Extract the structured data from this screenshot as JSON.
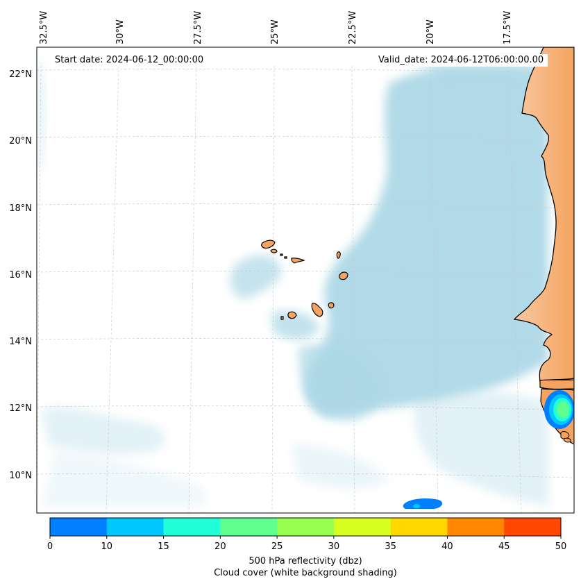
{
  "start_date": "Start date: 2024-06-12_00:00:00",
  "valid_date": "Valid_date: 2024-06-12T06:00:00.00",
  "lon_labels": [
    "32.5°W",
    "30°W",
    "27.5°W",
    "25°W",
    "22.5°W",
    "20°W",
    "17.5°W"
  ],
  "lat_labels": [
    "22°N",
    "20°N",
    "18°N",
    "16°N",
    "14°N",
    "12°N",
    "10°N"
  ],
  "colorbar": {
    "ticks": [
      "0",
      "10",
      "15",
      "20",
      "25",
      "30",
      "35",
      "40",
      "45",
      "50"
    ],
    "colors": [
      "#0080ff",
      "#00c8ff",
      "#20ffd8",
      "#60ff90",
      "#98ff50",
      "#d8ff20",
      "#ffd800",
      "#ff8800",
      "#ff4800"
    ],
    "label": "500 hPa reflectivity (dbz)",
    "sublabel": "Cloud cover (white background shading)"
  },
  "colors": {
    "land": "#f4a460",
    "cloud": "#add8e6",
    "coast": "#000000",
    "grid": "#c8c8c8"
  }
}
